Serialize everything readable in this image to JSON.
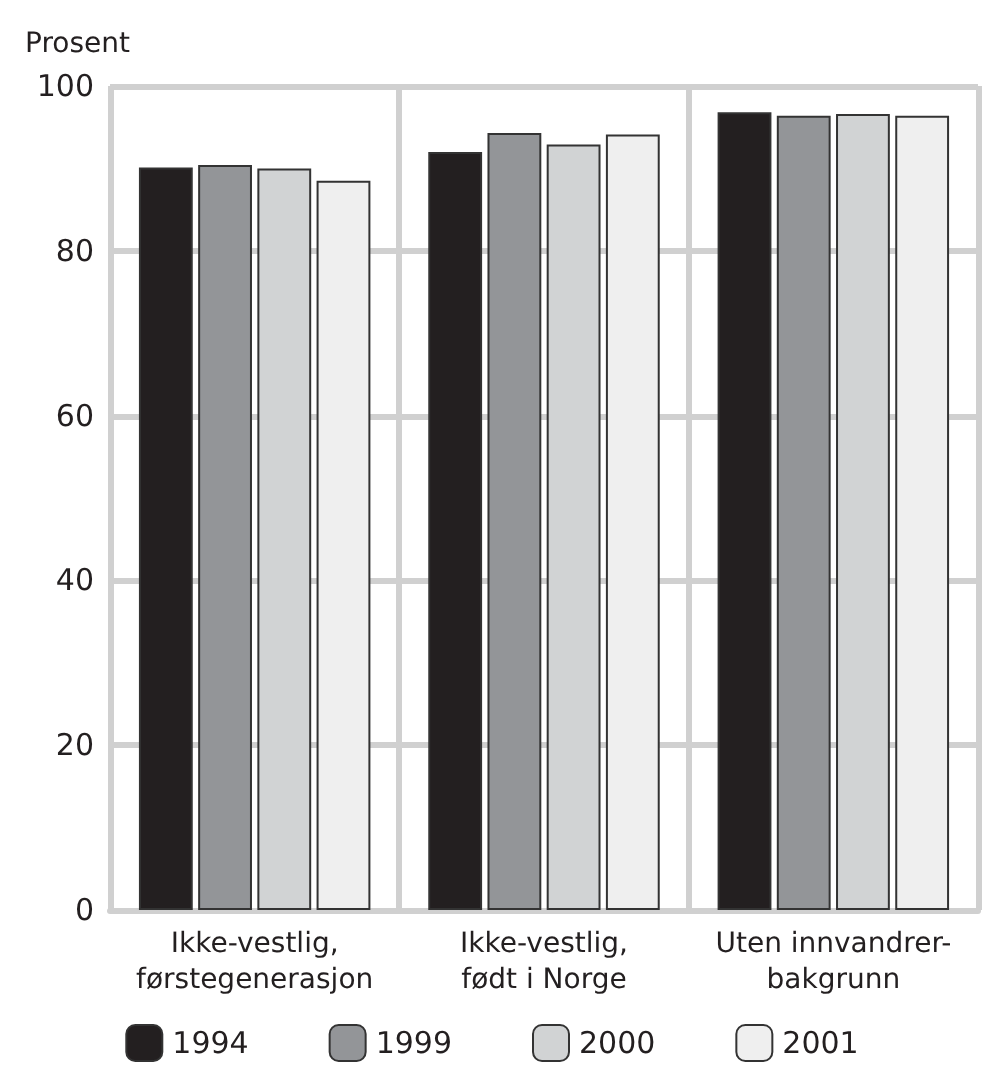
{
  "chart_data": {
    "type": "bar",
    "ylabel": "Prosent",
    "categories": [
      "Ikke-vestlig,\nførstegenerasjon",
      "Ikke-vestlig,\nfødt i Norge",
      "Uten innvandrer-\nbakgrunn"
    ],
    "series": [
      {
        "name": "1994",
        "color": "#231f20",
        "values": [
          90.1,
          92.0,
          96.8
        ]
      },
      {
        "name": "1999",
        "color": "#939598",
        "values": [
          90.4,
          94.3,
          96.4
        ]
      },
      {
        "name": "2000",
        "color": "#d1d3d4",
        "values": [
          90.0,
          92.9,
          96.6
        ]
      },
      {
        "name": "2001",
        "color": "#efefef",
        "values": [
          88.5,
          94.1,
          96.4
        ]
      }
    ],
    "ylim": [
      0,
      100
    ],
    "yticks": [
      0,
      20,
      40,
      60,
      80,
      100
    ],
    "grid": true,
    "legend": "bottom"
  }
}
